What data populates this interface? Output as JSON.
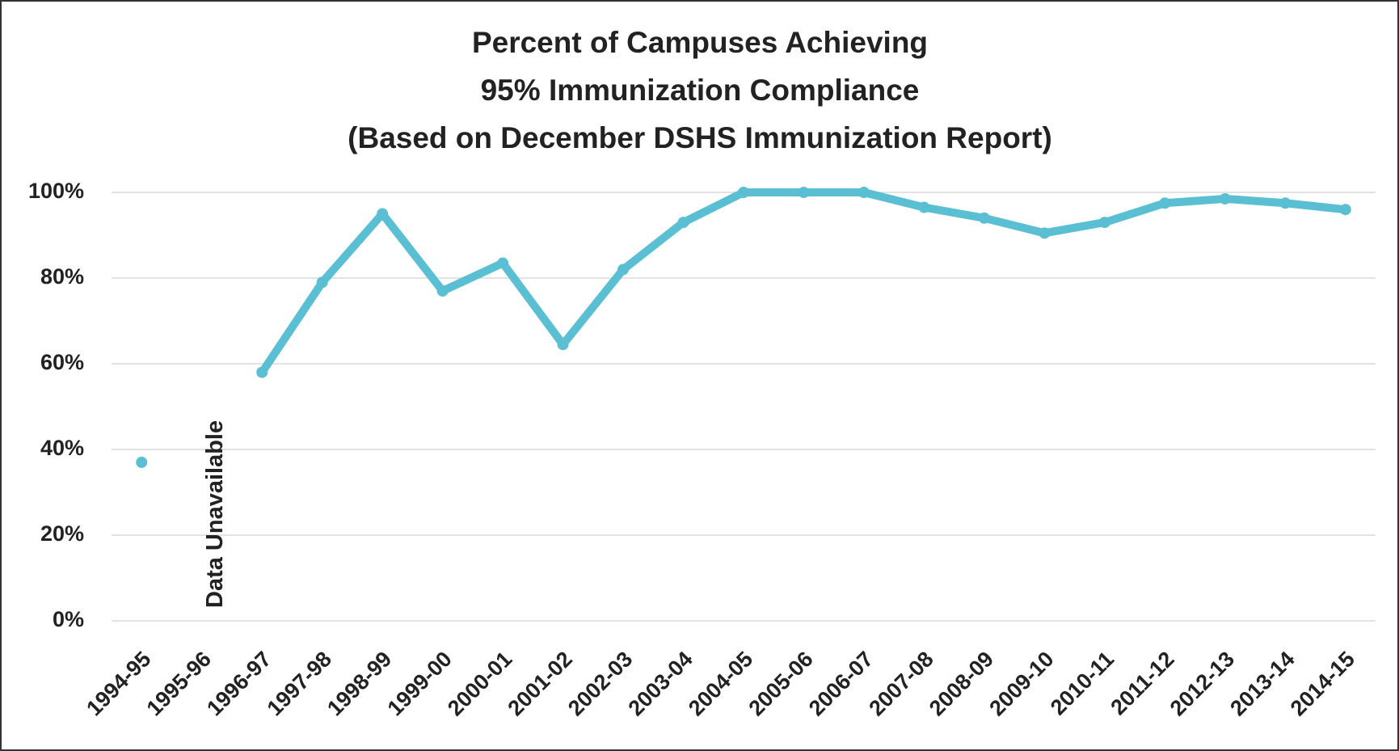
{
  "chart_data": {
    "type": "line",
    "title": [
      "Percent of Campuses Achieving",
      "95% Immunization Compliance",
      "(Based on December DSHS Immunization Report)"
    ],
    "annotation": "Data Unavailable",
    "categories": [
      "1994-95",
      "1995-96",
      "1996-97",
      "1997-98",
      "1998-99",
      "1999-00",
      "2000-01",
      "2001-02",
      "2002-03",
      "2003-04",
      "2004-05",
      "2005-06",
      "2006-07",
      "2007-08",
      "2008-09",
      "2009-10",
      "2010-11",
      "2011-12",
      "2012-13",
      "2013-14",
      "2014-15"
    ],
    "values": [
      37,
      null,
      58,
      79,
      95,
      77,
      83.5,
      64.5,
      82,
      93,
      100,
      100,
      100,
      96.5,
      94,
      90.5,
      93,
      97.5,
      98.5,
      97.5,
      96
    ],
    "color": "#5bbfd4",
    "ylim": [
      0,
      100
    ],
    "yticks": [
      {
        "value": 0,
        "label": "0%"
      },
      {
        "value": 20,
        "label": "20%"
      },
      {
        "value": 40,
        "label": "40%"
      },
      {
        "value": 60,
        "label": "60%"
      },
      {
        "value": 80,
        "label": "80%"
      },
      {
        "value": 100,
        "label": "100%"
      }
    ],
    "grid": true
  }
}
